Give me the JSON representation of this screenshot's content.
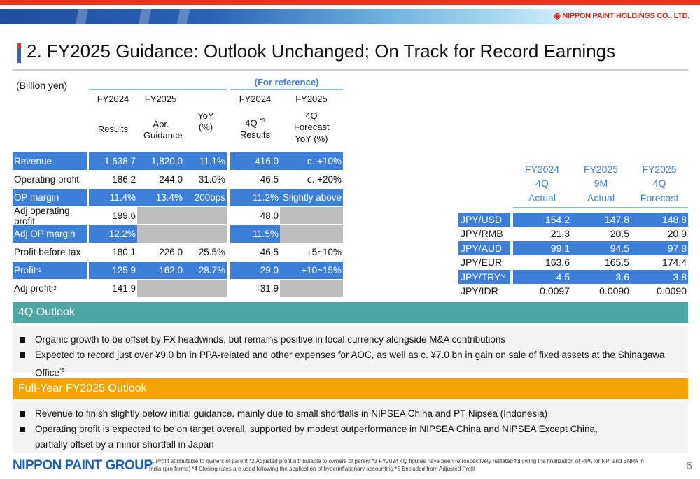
{
  "header": {
    "company": "NIPPON PAINT HOLDINGS CO., LTD.",
    "title": "2. FY2025 Guidance: Outlook Unchanged; On Track for Record Earnings"
  },
  "colors": {
    "accent_blue": "#3d7fd8",
    "teal": "#4ea6a4",
    "orange": "#f4a300",
    "red": "#e8321e"
  },
  "guidance": {
    "unit": "(Billion yen)",
    "reference": "(For reference)",
    "headers": [
      {
        "year": "FY2024",
        "sub": "Results"
      },
      {
        "year": "FY2025",
        "sub": "Apr. Guidance"
      },
      {
        "year": "",
        "sub": "YoY (%)"
      },
      {
        "year": "FY2024",
        "sub": "4Q",
        "note": "*3",
        "sub2": "Results"
      },
      {
        "year": "FY2025",
        "sub": "4Q Forecast YoY (%)"
      }
    ],
    "rows": [
      {
        "label": "Revenue",
        "sup": "",
        "v": [
          "1,638.7",
          "1,820.0",
          "11.1%",
          "416.0",
          "c. +10%"
        ]
      },
      {
        "label": "Operating profit",
        "sup": "",
        "v": [
          "186.2",
          "244.0",
          "31.0%",
          "46.5",
          "c. +20%"
        ]
      },
      {
        "label": "OP margin",
        "sup": "",
        "v": [
          "11.4%",
          "13.4%",
          "200bps",
          "11.2%",
          "Slightly above"
        ]
      },
      {
        "label": "Adj operating profit",
        "sup": "",
        "v": [
          "199.6",
          "",
          "",
          "48.0",
          ""
        ]
      },
      {
        "label": "Adj OP margin",
        "sup": "",
        "v": [
          "12.2%",
          "",
          "",
          "11.5%",
          ""
        ]
      },
      {
        "label": "Profit before tax",
        "sup": "",
        "v": [
          "180.1",
          "226.0",
          "25.5%",
          "46.5",
          "+5~10%"
        ]
      },
      {
        "label": "Profit",
        "sup": "*1",
        "v": [
          "125.9",
          "162.0",
          "28.7%",
          "29.0",
          "+10~15%"
        ]
      },
      {
        "label": "Adj profit",
        "sup": "*2",
        "v": [
          "141.9",
          "",
          "",
          "31.9",
          ""
        ]
      }
    ]
  },
  "fx": {
    "headers": [
      {
        "year": "FY2024",
        "l1": "4Q",
        "l2": "Actual"
      },
      {
        "year": "FY2025",
        "l1": "9M",
        "l2": "Actual"
      },
      {
        "year": "FY2025",
        "l1": "4Q",
        "l2": "Forecast"
      }
    ],
    "rows": [
      {
        "label": "JPY/USD",
        "sup": "",
        "v": [
          "154.2",
          "147.8",
          "148.8"
        ]
      },
      {
        "label": "JPY/RMB",
        "sup": "",
        "v": [
          "21.3",
          "20.5",
          "20.9"
        ]
      },
      {
        "label": "JPY/AUD",
        "sup": "",
        "v": [
          "99.1",
          "94.5",
          "97.8"
        ]
      },
      {
        "label": "JPY/EUR",
        "sup": "",
        "v": [
          "163.6",
          "165.5",
          "174.4"
        ]
      },
      {
        "label": "JPY/TRY",
        "sup": "*4",
        "v": [
          "4.5",
          "3.6",
          "3.8"
        ]
      },
      {
        "label": "JPY/IDR",
        "sup": "",
        "v": [
          "0.0097",
          "0.0090",
          "0.0090"
        ]
      }
    ]
  },
  "outlook4q": {
    "title": "4Q Outlook",
    "bullets": [
      "Organic growth to be offset by FX headwinds, but remains positive in local currency alongside M&A contributions",
      "Expected to record just over ¥9.0 bn in PPA-related and other expenses for AOC, as well as c. ¥7.0 bn in gain on sale of fixed assets at the Shinagawa Office"
    ],
    "bullet2_sup": "*5"
  },
  "outlookFY": {
    "title": "Full-Year FY2025 Outlook",
    "bullets": [
      "Revenue to finish slightly below initial guidance, mainly due to small shortfalls in NIPSEA China and PT Nipsea (Indonesia)",
      "Operating profit is expected to be on target overall, supported by modest outperformance in NIPSEA China and NIPSEA Except China, partially offset by a minor shortfall in Japan"
    ]
  },
  "footer": {
    "group_logo": "NIPPON PAINT GROUP",
    "notes": "*1 Profit attributable to owners of parent     *2 Adjusted profit attributable to owners of parent     *3 FY2024 4Q figures have been retrospectively restated following the finalization of PPA for NPI and BNPA in India (pro forma)     *4 Closing rates are used following the application of hyperinflationary accounting     *5 Excluded from Adjusted Profit",
    "page": "6"
  }
}
